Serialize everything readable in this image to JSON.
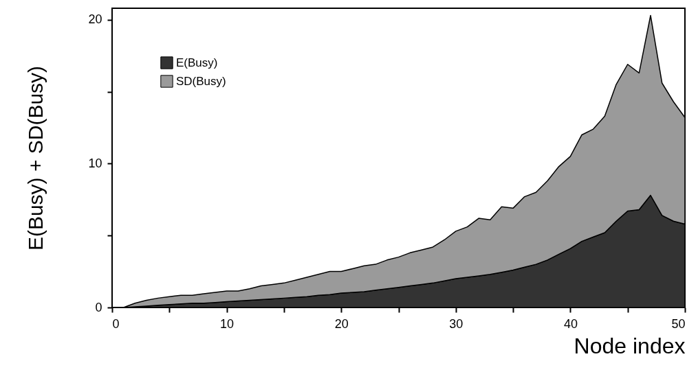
{
  "chart_data": {
    "type": "area",
    "stacked": true,
    "xlabel": "Node index",
    "ylabel": "E(Busy) + SD(Busy)",
    "legend": "top left",
    "x": [
      0,
      1,
      2,
      3,
      4,
      5,
      6,
      7,
      8,
      9,
      10,
      11,
      12,
      13,
      14,
      15,
      16,
      17,
      18,
      19,
      20,
      21,
      22,
      23,
      24,
      25,
      26,
      27,
      28,
      29,
      30,
      31,
      32,
      33,
      34,
      35,
      36,
      37,
      38,
      39,
      40,
      41,
      42,
      43,
      44,
      45,
      46,
      47,
      48,
      49,
      50
    ],
    "xlim": [
      0,
      50
    ],
    "xticks": [
      0,
      {
        "value": 5,
        "label": null
      },
      10,
      {
        "value": 15,
        "label": null
      },
      20,
      {
        "value": 25,
        "label": null
      },
      30,
      {
        "value": 35,
        "label": null
      },
      40,
      {
        "value": 45,
        "label": null
      },
      50
    ],
    "ylim": [
      0,
      20.8
    ],
    "yticks": [
      0,
      {
        "value": 5,
        "label": null
      },
      10,
      {
        "value": 15,
        "label": null
      },
      20
    ],
    "series": [
      {
        "name": "E(Busy)",
        "color": "#333333",
        "values": [
          0,
          0,
          0.05,
          0.1,
          0.15,
          0.2,
          0.25,
          0.3,
          0.3,
          0.35,
          0.4,
          0.45,
          0.5,
          0.55,
          0.6,
          0.65,
          0.7,
          0.75,
          0.85,
          0.9,
          1.0,
          1.05,
          1.1,
          1.2,
          1.3,
          1.4,
          1.5,
          1.6,
          1.7,
          1.85,
          2.0,
          2.1,
          2.2,
          2.3,
          2.45,
          2.6,
          2.8,
          3.0,
          3.3,
          3.7,
          4.1,
          4.6,
          4.9,
          5.2,
          6.0,
          6.7,
          6.8,
          7.8,
          6.4,
          6.0,
          5.8
        ]
      },
      {
        "name": "SD(Busy)",
        "color": "#9a9a9a",
        "values": [
          0,
          0,
          0.25,
          0.4,
          0.5,
          0.55,
          0.6,
          0.55,
          0.65,
          0.7,
          0.75,
          0.7,
          0.8,
          0.95,
          1.0,
          1.05,
          1.2,
          1.35,
          1.45,
          1.6,
          1.5,
          1.65,
          1.8,
          1.8,
          2.0,
          2.1,
          2.3,
          2.4,
          2.5,
          2.85,
          3.3,
          3.5,
          4.0,
          3.8,
          4.55,
          4.3,
          4.9,
          5.0,
          5.5,
          6.1,
          6.4,
          7.4,
          7.5,
          8.1,
          9.5,
          10.2,
          9.5,
          12.5,
          9.2,
          8.3,
          7.4
        ]
      }
    ]
  }
}
